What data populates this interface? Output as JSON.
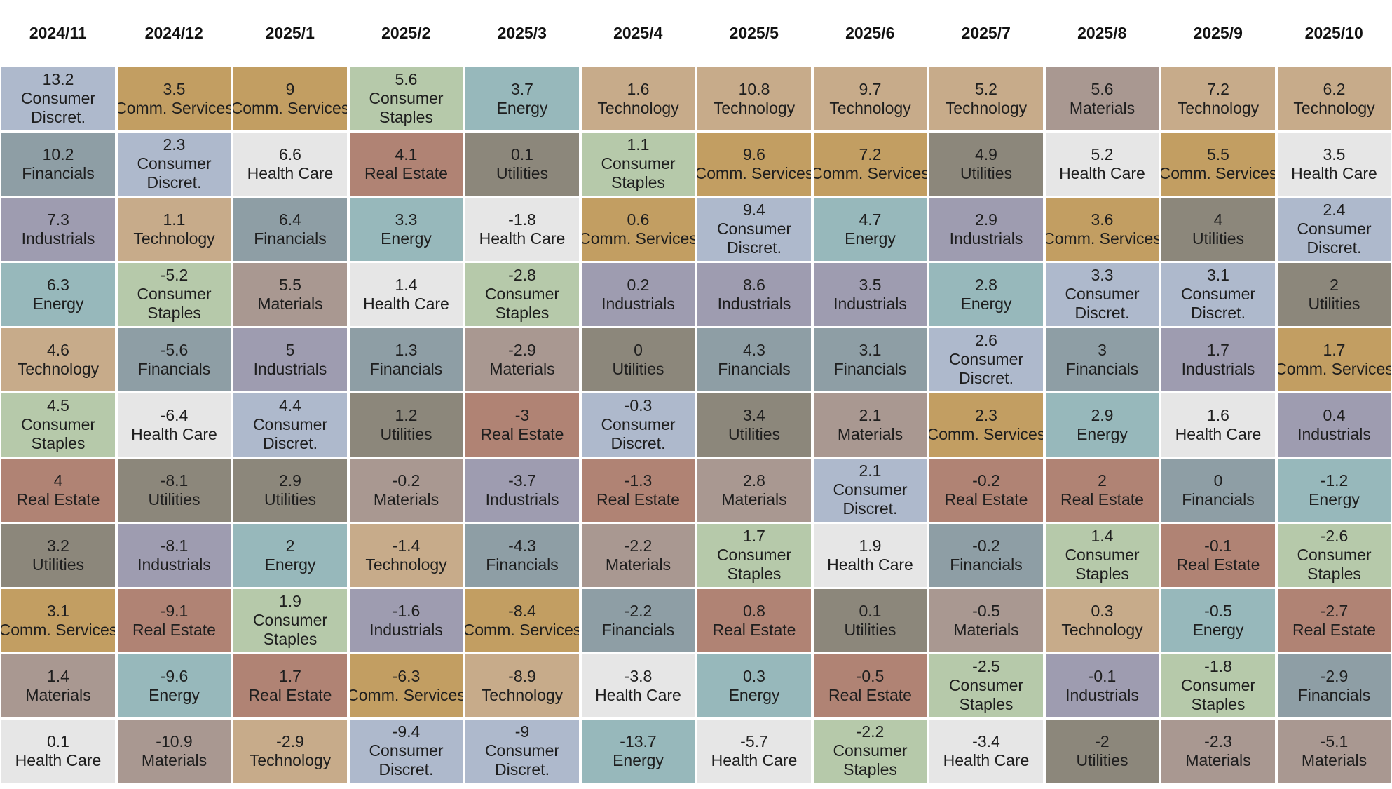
{
  "chart_data": {
    "type": "table",
    "title": "",
    "columns": [
      "2024/11",
      "2024/12",
      "2025/1",
      "2025/2",
      "2025/3",
      "2025/4",
      "2025/5",
      "2025/6",
      "2025/7",
      "2025/8",
      "2025/9",
      "2025/10"
    ],
    "sector_colors": {
      "Consumer Discret.": "#aeb9cc",
      "Comm. Services": "#c29e62",
      "Consumer Staples": "#b6c9aa",
      "Energy": "#97b8bb",
      "Technology": "#c7ab8a",
      "Financials": "#8e9ea5",
      "Real Estate": "#b08374",
      "Utilities": "#8c877b",
      "Health Care": "#e6e6e6",
      "Industrials": "#9e9cb0",
      "Materials": "#a99891"
    },
    "data": [
      [
        {
          "v": "13.2",
          "lines": [
            "Consumer",
            "Discret."
          ],
          "s": "Consumer Discret."
        },
        {
          "v": "10.2",
          "lines": [
            "Financials"
          ],
          "s": "Financials"
        },
        {
          "v": "7.3",
          "lines": [
            "Industrials"
          ],
          "s": "Industrials"
        },
        {
          "v": "6.3",
          "lines": [
            "Energy"
          ],
          "s": "Energy"
        },
        {
          "v": "4.6",
          "lines": [
            "Technology"
          ],
          "s": "Technology"
        },
        {
          "v": "4.5",
          "lines": [
            "Consumer",
            "Staples"
          ],
          "s": "Consumer Staples"
        },
        {
          "v": "4",
          "lines": [
            "Real Estate"
          ],
          "s": "Real Estate"
        },
        {
          "v": "3.2",
          "lines": [
            "Utilities"
          ],
          "s": "Utilities"
        },
        {
          "v": "3.1",
          "lines": [
            "Comm. Services"
          ],
          "s": "Comm. Services"
        },
        {
          "v": "1.4",
          "lines": [
            "Materials"
          ],
          "s": "Materials"
        },
        {
          "v": "0.1",
          "lines": [
            "Health Care"
          ],
          "s": "Health Care"
        }
      ],
      [
        {
          "v": "3.5",
          "lines": [
            "Comm. Services"
          ],
          "s": "Comm. Services"
        },
        {
          "v": "2.3",
          "lines": [
            "Consumer",
            "Discret."
          ],
          "s": "Consumer Discret."
        },
        {
          "v": "1.1",
          "lines": [
            "Technology"
          ],
          "s": "Technology"
        },
        {
          "v": "-5.2",
          "lines": [
            "Consumer",
            "Staples"
          ],
          "s": "Consumer Staples"
        },
        {
          "v": "-5.6",
          "lines": [
            "Financials"
          ],
          "s": "Financials"
        },
        {
          "v": "-6.4",
          "lines": [
            "Health Care"
          ],
          "s": "Health Care"
        },
        {
          "v": "-8.1",
          "lines": [
            "Utilities"
          ],
          "s": "Utilities"
        },
        {
          "v": "-8.1",
          "lines": [
            "Industrials"
          ],
          "s": "Industrials"
        },
        {
          "v": "-9.1",
          "lines": [
            "Real Estate"
          ],
          "s": "Real Estate"
        },
        {
          "v": "-9.6",
          "lines": [
            "Energy"
          ],
          "s": "Energy"
        },
        {
          "v": "-10.9",
          "lines": [
            "Materials"
          ],
          "s": "Materials"
        }
      ],
      [
        {
          "v": "9",
          "lines": [
            "Comm. Services"
          ],
          "s": "Comm. Services"
        },
        {
          "v": "6.6",
          "lines": [
            "Health Care"
          ],
          "s": "Health Care"
        },
        {
          "v": "6.4",
          "lines": [
            "Financials"
          ],
          "s": "Financials"
        },
        {
          "v": "5.5",
          "lines": [
            "Materials"
          ],
          "s": "Materials"
        },
        {
          "v": "5",
          "lines": [
            "Industrials"
          ],
          "s": "Industrials"
        },
        {
          "v": "4.4",
          "lines": [
            "Consumer",
            "Discret."
          ],
          "s": "Consumer Discret."
        },
        {
          "v": "2.9",
          "lines": [
            "Utilities"
          ],
          "s": "Utilities"
        },
        {
          "v": "2",
          "lines": [
            "Energy"
          ],
          "s": "Energy"
        },
        {
          "v": "1.9",
          "lines": [
            "Consumer",
            "Staples"
          ],
          "s": "Consumer Staples"
        },
        {
          "v": "1.7",
          "lines": [
            "Real Estate"
          ],
          "s": "Real Estate"
        },
        {
          "v": "-2.9",
          "lines": [
            "Technology"
          ],
          "s": "Technology"
        }
      ],
      [
        {
          "v": "5.6",
          "lines": [
            "Consumer",
            "Staples"
          ],
          "s": "Consumer Staples"
        },
        {
          "v": "4.1",
          "lines": [
            "Real Estate"
          ],
          "s": "Real Estate"
        },
        {
          "v": "3.3",
          "lines": [
            "Energy"
          ],
          "s": "Energy"
        },
        {
          "v": "1.4",
          "lines": [
            "Health Care"
          ],
          "s": "Health Care"
        },
        {
          "v": "1.3",
          "lines": [
            "Financials"
          ],
          "s": "Financials"
        },
        {
          "v": "1.2",
          "lines": [
            "Utilities"
          ],
          "s": "Utilities"
        },
        {
          "v": "-0.2",
          "lines": [
            "Materials"
          ],
          "s": "Materials"
        },
        {
          "v": "-1.4",
          "lines": [
            "Technology"
          ],
          "s": "Technology"
        },
        {
          "v": "-1.6",
          "lines": [
            "Industrials"
          ],
          "s": "Industrials"
        },
        {
          "v": "-6.3",
          "lines": [
            "Comm. Services"
          ],
          "s": "Comm. Services"
        },
        {
          "v": "-9.4",
          "lines": [
            "Consumer",
            "Discret."
          ],
          "s": "Consumer Discret."
        }
      ],
      [
        {
          "v": "3.7",
          "lines": [
            "Energy"
          ],
          "s": "Energy"
        },
        {
          "v": "0.1",
          "lines": [
            "Utilities"
          ],
          "s": "Utilities"
        },
        {
          "v": "-1.8",
          "lines": [
            "Health Care"
          ],
          "s": "Health Care"
        },
        {
          "v": "-2.8",
          "lines": [
            "Consumer",
            "Staples"
          ],
          "s": "Consumer Staples"
        },
        {
          "v": "-2.9",
          "lines": [
            "Materials"
          ],
          "s": "Materials"
        },
        {
          "v": "-3",
          "lines": [
            "Real Estate"
          ],
          "s": "Real Estate"
        },
        {
          "v": "-3.7",
          "lines": [
            "Industrials"
          ],
          "s": "Industrials"
        },
        {
          "v": "-4.3",
          "lines": [
            "Financials"
          ],
          "s": "Financials"
        },
        {
          "v": "-8.4",
          "lines": [
            "Comm. Services"
          ],
          "s": "Comm. Services"
        },
        {
          "v": "-8.9",
          "lines": [
            "Technology"
          ],
          "s": "Technology"
        },
        {
          "v": "-9",
          "lines": [
            "Consumer",
            "Discret."
          ],
          "s": "Consumer Discret."
        }
      ],
      [
        {
          "v": "1.6",
          "lines": [
            "Technology"
          ],
          "s": "Technology"
        },
        {
          "v": "1.1",
          "lines": [
            "Consumer",
            "Staples"
          ],
          "s": "Consumer Staples"
        },
        {
          "v": "0.6",
          "lines": [
            "Comm. Services"
          ],
          "s": "Comm. Services"
        },
        {
          "v": "0.2",
          "lines": [
            "Industrials"
          ],
          "s": "Industrials"
        },
        {
          "v": "0",
          "lines": [
            "Utilities"
          ],
          "s": "Utilities"
        },
        {
          "v": "-0.3",
          "lines": [
            "Consumer",
            "Discret."
          ],
          "s": "Consumer Discret."
        },
        {
          "v": "-1.3",
          "lines": [
            "Real Estate"
          ],
          "s": "Real Estate"
        },
        {
          "v": "-2.2",
          "lines": [
            "Materials"
          ],
          "s": "Materials"
        },
        {
          "v": "-2.2",
          "lines": [
            "Financials"
          ],
          "s": "Financials"
        },
        {
          "v": "-3.8",
          "lines": [
            "Health Care"
          ],
          "s": "Health Care"
        },
        {
          "v": "-13.7",
          "lines": [
            "Energy"
          ],
          "s": "Energy"
        }
      ],
      [
        {
          "v": "10.8",
          "lines": [
            "Technology"
          ],
          "s": "Technology"
        },
        {
          "v": "9.6",
          "lines": [
            "Comm. Services"
          ],
          "s": "Comm. Services"
        },
        {
          "v": "9.4",
          "lines": [
            "Consumer",
            "Discret."
          ],
          "s": "Consumer Discret."
        },
        {
          "v": "8.6",
          "lines": [
            "Industrials"
          ],
          "s": "Industrials"
        },
        {
          "v": "4.3",
          "lines": [
            "Financials"
          ],
          "s": "Financials"
        },
        {
          "v": "3.4",
          "lines": [
            "Utilities"
          ],
          "s": "Utilities"
        },
        {
          "v": "2.8",
          "lines": [
            "Materials"
          ],
          "s": "Materials"
        },
        {
          "v": "1.7",
          "lines": [
            "Consumer",
            "Staples"
          ],
          "s": "Consumer Staples"
        },
        {
          "v": "0.8",
          "lines": [
            "Real Estate"
          ],
          "s": "Real Estate"
        },
        {
          "v": "0.3",
          "lines": [
            "Energy"
          ],
          "s": "Energy"
        },
        {
          "v": "-5.7",
          "lines": [
            "Health Care"
          ],
          "s": "Health Care"
        }
      ],
      [
        {
          "v": "9.7",
          "lines": [
            "Technology"
          ],
          "s": "Technology"
        },
        {
          "v": "7.2",
          "lines": [
            "Comm. Services"
          ],
          "s": "Comm. Services"
        },
        {
          "v": "4.7",
          "lines": [
            "Energy"
          ],
          "s": "Energy"
        },
        {
          "v": "3.5",
          "lines": [
            "Industrials"
          ],
          "s": "Industrials"
        },
        {
          "v": "3.1",
          "lines": [
            "Financials"
          ],
          "s": "Financials"
        },
        {
          "v": "2.1",
          "lines": [
            "Materials"
          ],
          "s": "Materials"
        },
        {
          "v": "2.1",
          "lines": [
            "Consumer",
            "Discret."
          ],
          "s": "Consumer Discret."
        },
        {
          "v": "1.9",
          "lines": [
            "Health Care"
          ],
          "s": "Health Care"
        },
        {
          "v": "0.1",
          "lines": [
            "Utilities"
          ],
          "s": "Utilities"
        },
        {
          "v": "-0.5",
          "lines": [
            "Real Estate"
          ],
          "s": "Real Estate"
        },
        {
          "v": "-2.2",
          "lines": [
            "Consumer",
            "Staples"
          ],
          "s": "Consumer Staples"
        }
      ],
      [
        {
          "v": "5.2",
          "lines": [
            "Technology"
          ],
          "s": "Technology"
        },
        {
          "v": "4.9",
          "lines": [
            "Utilities"
          ],
          "s": "Utilities"
        },
        {
          "v": "2.9",
          "lines": [
            "Industrials"
          ],
          "s": "Industrials"
        },
        {
          "v": "2.8",
          "lines": [
            "Energy"
          ],
          "s": "Energy"
        },
        {
          "v": "2.6",
          "lines": [
            "Consumer",
            "Discret."
          ],
          "s": "Consumer Discret."
        },
        {
          "v": "2.3",
          "lines": [
            "Comm. Services"
          ],
          "s": "Comm. Services"
        },
        {
          "v": "-0.2",
          "lines": [
            "Real Estate"
          ],
          "s": "Real Estate"
        },
        {
          "v": "-0.2",
          "lines": [
            "Financials"
          ],
          "s": "Financials"
        },
        {
          "v": "-0.5",
          "lines": [
            "Materials"
          ],
          "s": "Materials"
        },
        {
          "v": "-2.5",
          "lines": [
            "Consumer",
            "Staples"
          ],
          "s": "Consumer Staples"
        },
        {
          "v": "-3.4",
          "lines": [
            "Health Care"
          ],
          "s": "Health Care"
        }
      ],
      [
        {
          "v": "5.6",
          "lines": [
            "Materials"
          ],
          "s": "Materials"
        },
        {
          "v": "5.2",
          "lines": [
            "Health Care"
          ],
          "s": "Health Care"
        },
        {
          "v": "3.6",
          "lines": [
            "Comm. Services"
          ],
          "s": "Comm. Services"
        },
        {
          "v": "3.3",
          "lines": [
            "Consumer",
            "Discret."
          ],
          "s": "Consumer Discret."
        },
        {
          "v": "3",
          "lines": [
            "Financials"
          ],
          "s": "Financials"
        },
        {
          "v": "2.9",
          "lines": [
            "Energy"
          ],
          "s": "Energy"
        },
        {
          "v": "2",
          "lines": [
            "Real Estate"
          ],
          "s": "Real Estate"
        },
        {
          "v": "1.4",
          "lines": [
            "Consumer",
            "Staples"
          ],
          "s": "Consumer Staples"
        },
        {
          "v": "0.3",
          "lines": [
            "Technology"
          ],
          "s": "Technology"
        },
        {
          "v": "-0.1",
          "lines": [
            "Industrials"
          ],
          "s": "Industrials"
        },
        {
          "v": "-2",
          "lines": [
            "Utilities"
          ],
          "s": "Utilities"
        }
      ],
      [
        {
          "v": "7.2",
          "lines": [
            "Technology"
          ],
          "s": "Technology"
        },
        {
          "v": "5.5",
          "lines": [
            "Comm. Services"
          ],
          "s": "Comm. Services"
        },
        {
          "v": "4",
          "lines": [
            "Utilities"
          ],
          "s": "Utilities"
        },
        {
          "v": "3.1",
          "lines": [
            "Consumer",
            "Discret."
          ],
          "s": "Consumer Discret."
        },
        {
          "v": "1.7",
          "lines": [
            "Industrials"
          ],
          "s": "Industrials"
        },
        {
          "v": "1.6",
          "lines": [
            "Health Care"
          ],
          "s": "Health Care"
        },
        {
          "v": "0",
          "lines": [
            "Financials"
          ],
          "s": "Financials"
        },
        {
          "v": "-0.1",
          "lines": [
            "Real Estate"
          ],
          "s": "Real Estate"
        },
        {
          "v": "-0.5",
          "lines": [
            "Energy"
          ],
          "s": "Energy"
        },
        {
          "v": "-1.8",
          "lines": [
            "Consumer",
            "Staples"
          ],
          "s": "Consumer Staples"
        },
        {
          "v": "-2.3",
          "lines": [
            "Materials"
          ],
          "s": "Materials"
        }
      ],
      [
        {
          "v": "6.2",
          "lines": [
            "Technology"
          ],
          "s": "Technology"
        },
        {
          "v": "3.5",
          "lines": [
            "Health Care"
          ],
          "s": "Health Care"
        },
        {
          "v": "2.4",
          "lines": [
            "Consumer",
            "Discret."
          ],
          "s": "Consumer Discret."
        },
        {
          "v": "2",
          "lines": [
            "Utilities"
          ],
          "s": "Utilities"
        },
        {
          "v": "1.7",
          "lines": [
            "Comm. Services"
          ],
          "s": "Comm. Services"
        },
        {
          "v": "0.4",
          "lines": [
            "Industrials"
          ],
          "s": "Industrials"
        },
        {
          "v": "-1.2",
          "lines": [
            "Energy"
          ],
          "s": "Energy"
        },
        {
          "v": "-2.6",
          "lines": [
            "Consumer",
            "Staples"
          ],
          "s": "Consumer Staples"
        },
        {
          "v": "-2.7",
          "lines": [
            "Real Estate"
          ],
          "s": "Real Estate"
        },
        {
          "v": "-2.9",
          "lines": [
            "Financials"
          ],
          "s": "Financials"
        },
        {
          "v": "-5.1",
          "lines": [
            "Materials"
          ],
          "s": "Materials"
        }
      ]
    ]
  }
}
